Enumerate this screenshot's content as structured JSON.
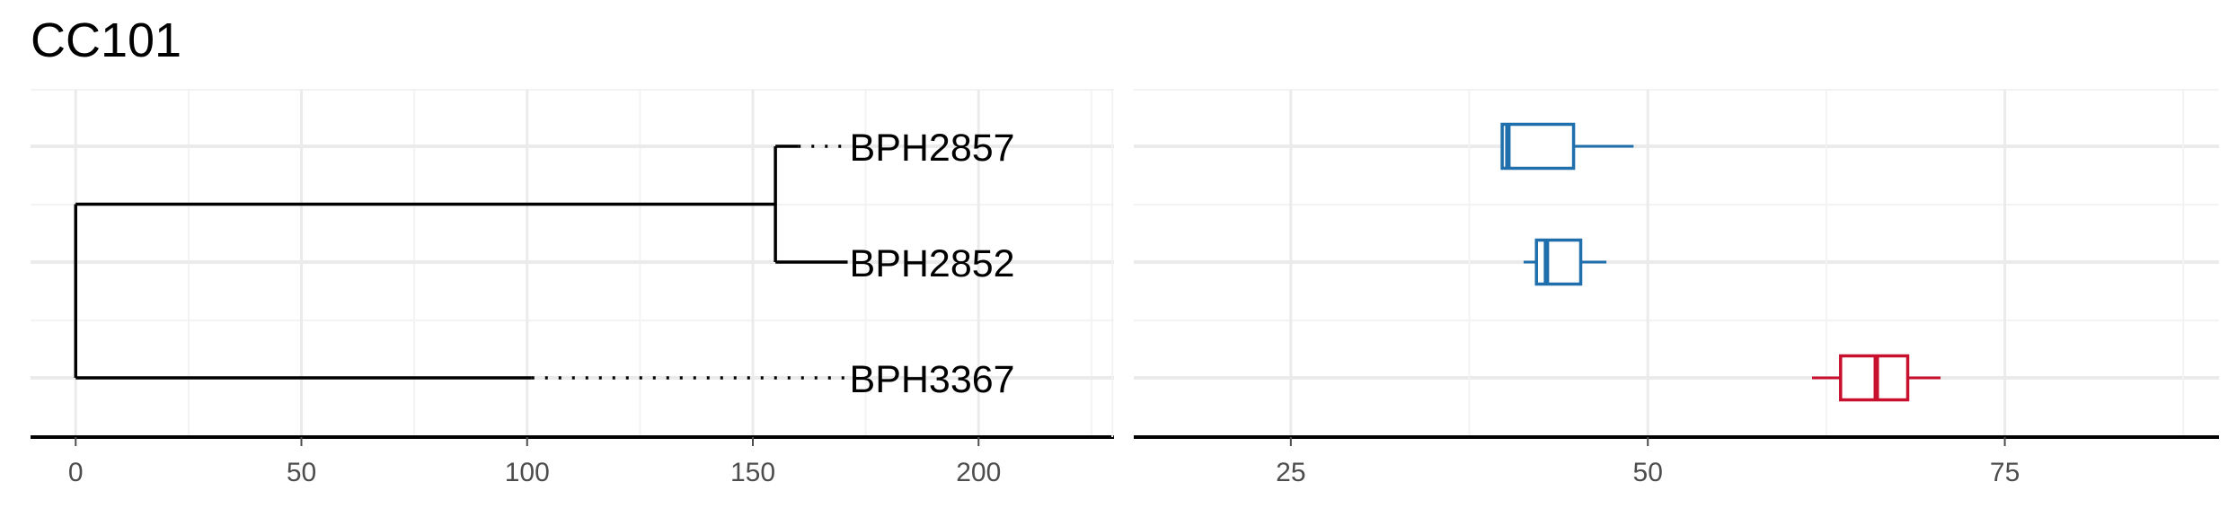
{
  "title": "CC101",
  "colors": {
    "grid_major": "#ebebeb",
    "grid_minor": "#f3f3f3",
    "axis": "#000000",
    "tree": "#000000",
    "tick_text": "#4d4d4d",
    "blue": "#1f6fad",
    "red": "#c8102e"
  },
  "chart_data": [
    {
      "type": "dendrogram",
      "xlim": [
        -10,
        230
      ],
      "x_ticks": [
        0,
        50,
        100,
        150,
        200
      ],
      "x_tick_labels": [
        "0",
        "50",
        "100",
        "150",
        "200"
      ],
      "grid": true,
      "tips": [
        {
          "label": "BPH2857",
          "branch_end": 160,
          "dotted_to": 171,
          "row": 1
        },
        {
          "label": "BPH2852",
          "branch_end": 171,
          "dotted_to": 171,
          "row": 2
        },
        {
          "label": "BPH3367",
          "branch_end": 101,
          "dotted_to": 171,
          "row": 3
        }
      ],
      "nodes": [
        {
          "name": "root",
          "x": 0,
          "rows": [
            1.5,
            3
          ]
        },
        {
          "name": "inner",
          "x": 155,
          "rows": [
            1,
            2
          ]
        }
      ]
    },
    {
      "type": "boxplot",
      "orientation": "horizontal",
      "xlim": [
        14,
        90
      ],
      "x_ticks": [
        25,
        50,
        75
      ],
      "x_tick_labels": [
        "25",
        "50",
        "75"
      ],
      "grid": true,
      "series": [
        {
          "row": 1,
          "min": 39.8,
          "q1": 39.8,
          "median": 40.2,
          "q3": 44.8,
          "max": 49.0,
          "color": "blue"
        },
        {
          "row": 2,
          "min": 41.3,
          "q1": 42.2,
          "median": 42.9,
          "q3": 45.3,
          "max": 47.1,
          "color": "blue"
        },
        {
          "row": 3,
          "min": 61.5,
          "q1": 63.5,
          "median": 66.0,
          "q3": 68.2,
          "max": 70.5,
          "color": "red"
        }
      ]
    }
  ]
}
